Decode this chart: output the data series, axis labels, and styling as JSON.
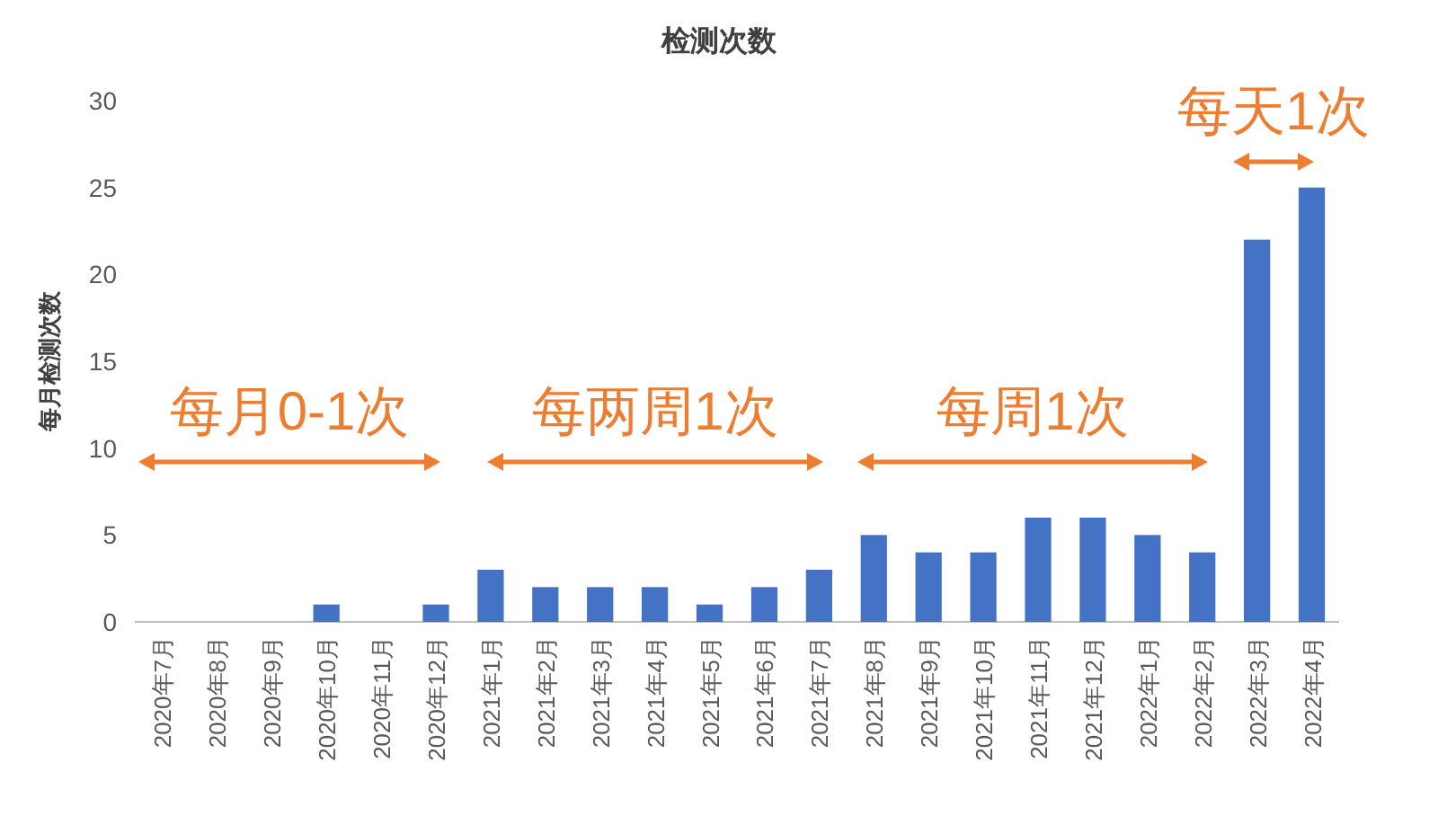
{
  "chart_data": {
    "type": "bar",
    "title": "检测次数",
    "ylabel": "每月检测次数",
    "categories": [
      "2020年7月",
      "2020年8月",
      "2020年9月",
      "2020年10月",
      "2020年11月",
      "2020年12月",
      "2021年1月",
      "2021年2月",
      "2021年3月",
      "2021年4月",
      "2021年5月",
      "2021年6月",
      "2021年7月",
      "2021年8月",
      "2021年9月",
      "2021年10月",
      "2021年11月",
      "2021年12月",
      "2022年1月",
      "2022年2月",
      "2022年3月",
      "2022年4月"
    ],
    "values": [
      0,
      0,
      0,
      1,
      0,
      1,
      3,
      2,
      2,
      2,
      1,
      2,
      3,
      5,
      4,
      4,
      6,
      6,
      5,
      4,
      22,
      25
    ],
    "color": "#4472c4",
    "ylim": [
      0,
      30
    ],
    "yticks": [
      0,
      5,
      10,
      15,
      20,
      25,
      30
    ],
    "grid": false,
    "annotations": [
      "每月0-1次",
      "每两周1次",
      "每周1次",
      "每天1次"
    ]
  }
}
